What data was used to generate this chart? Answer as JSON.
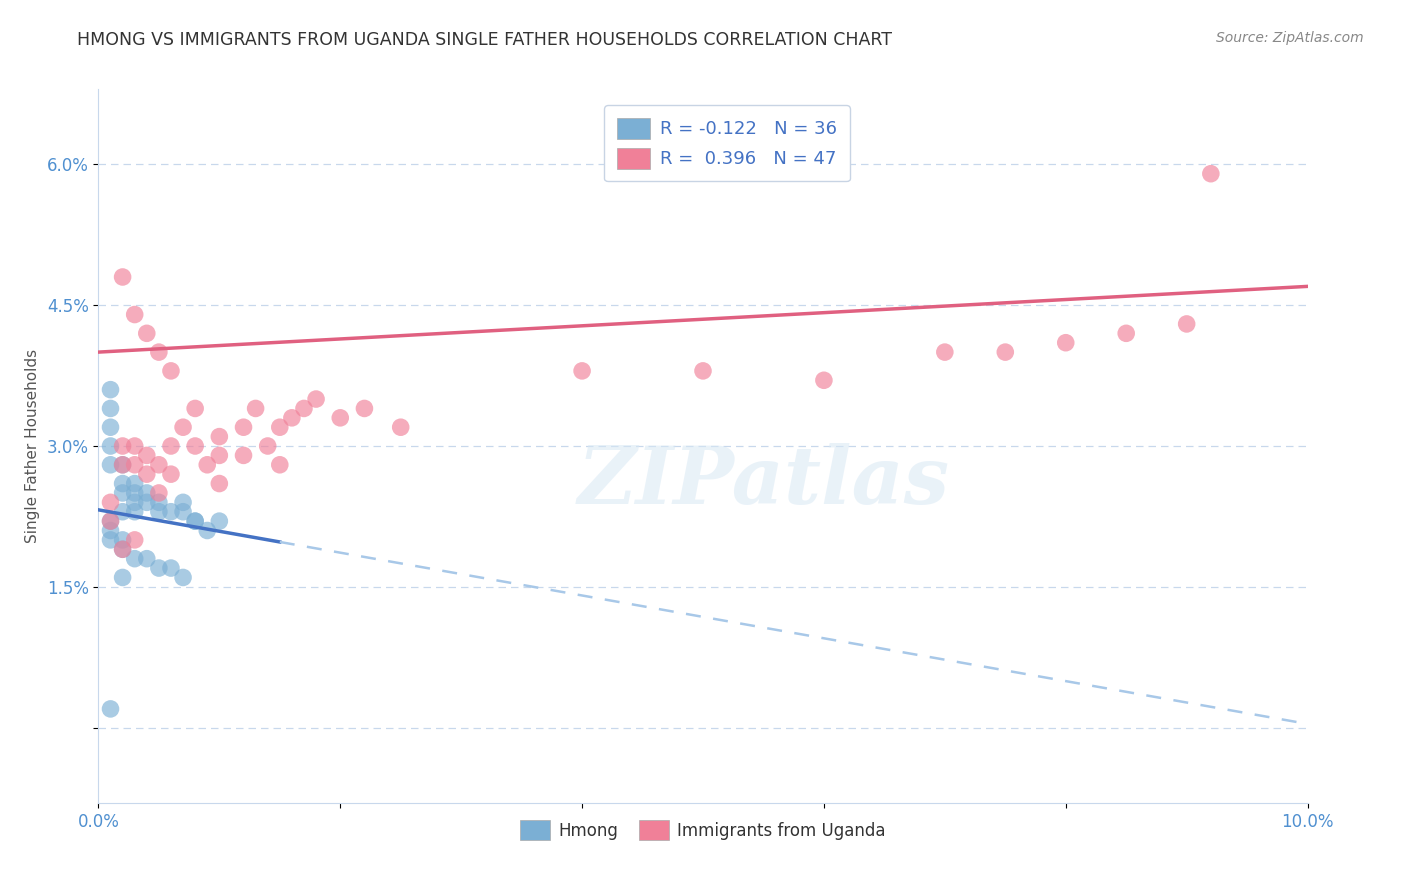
{
  "title": "HMONG VS IMMIGRANTS FROM UGANDA SINGLE FATHER HOUSEHOLDS CORRELATION CHART",
  "source": "Source: ZipAtlas.com",
  "ylabel": "Single Father Households",
  "xlim": [
    0.0,
    0.1
  ],
  "ylim": [
    -0.008,
    0.068
  ],
  "yticks": [
    0.0,
    0.015,
    0.03,
    0.045,
    0.06
  ],
  "ytick_labels": [
    "",
    "1.5%",
    "3.0%",
    "4.5%",
    "6.0%"
  ],
  "xticks": [
    0.0,
    0.02,
    0.04,
    0.06,
    0.08,
    0.1
  ],
  "xtick_labels": [
    "0.0%",
    "",
    "",
    "",
    "",
    "10.0%"
  ],
  "legend_labels_bottom": [
    "Hmong",
    "Immigrants from Uganda"
  ],
  "watermark": "ZIPatlas",
  "blue_color": "#7bafd4",
  "pink_color": "#f08098",
  "blue_line_color": "#4472c4",
  "pink_line_color": "#e06080",
  "blue_dashed_color": "#a8c8e8",
  "hmong_scatter_x": [
    0.001,
    0.001,
    0.001,
    0.001,
    0.001,
    0.002,
    0.002,
    0.002,
    0.002,
    0.003,
    0.003,
    0.003,
    0.003,
    0.004,
    0.004,
    0.005,
    0.005,
    0.006,
    0.007,
    0.007,
    0.008,
    0.008,
    0.009,
    0.01,
    0.001,
    0.001,
    0.001,
    0.002,
    0.002,
    0.003,
    0.004,
    0.005,
    0.006,
    0.007,
    0.001,
    0.002
  ],
  "hmong_scatter_y": [
    0.036,
    0.034,
    0.032,
    0.03,
    0.028,
    0.028,
    0.026,
    0.025,
    0.023,
    0.026,
    0.025,
    0.024,
    0.023,
    0.025,
    0.024,
    0.024,
    0.023,
    0.023,
    0.024,
    0.023,
    0.022,
    0.022,
    0.021,
    0.022,
    0.022,
    0.021,
    0.02,
    0.02,
    0.019,
    0.018,
    0.018,
    0.017,
    0.017,
    0.016,
    0.002,
    0.016
  ],
  "uganda_scatter_x": [
    0.001,
    0.001,
    0.002,
    0.002,
    0.003,
    0.003,
    0.004,
    0.004,
    0.005,
    0.005,
    0.006,
    0.006,
    0.007,
    0.008,
    0.009,
    0.01,
    0.01,
    0.012,
    0.013,
    0.014,
    0.015,
    0.016,
    0.017,
    0.018,
    0.02,
    0.022,
    0.025,
    0.002,
    0.003,
    0.004,
    0.005,
    0.006,
    0.008,
    0.01,
    0.012,
    0.015,
    0.04,
    0.05,
    0.06,
    0.07,
    0.075,
    0.08,
    0.085,
    0.09,
    0.002,
    0.003,
    0.092
  ],
  "uganda_scatter_y": [
    0.024,
    0.022,
    0.03,
    0.028,
    0.03,
    0.028,
    0.029,
    0.027,
    0.028,
    0.025,
    0.03,
    0.027,
    0.032,
    0.03,
    0.028,
    0.029,
    0.026,
    0.032,
    0.034,
    0.03,
    0.032,
    0.033,
    0.034,
    0.035,
    0.033,
    0.034,
    0.032,
    0.048,
    0.044,
    0.042,
    0.04,
    0.038,
    0.034,
    0.031,
    0.029,
    0.028,
    0.038,
    0.038,
    0.037,
    0.04,
    0.04,
    0.041,
    0.042,
    0.043,
    0.019,
    0.02,
    0.059
  ],
  "hmong_line_x0": 0.0,
  "hmong_line_y0": 0.0232,
  "hmong_line_x1": 0.025,
  "hmong_line_y1": 0.0175,
  "hmong_line_solid_end": 0.015,
  "uganda_line_x0": 0.0,
  "uganda_line_y0": 0.04,
  "uganda_line_x1": 0.1,
  "uganda_line_y1": 0.047
}
